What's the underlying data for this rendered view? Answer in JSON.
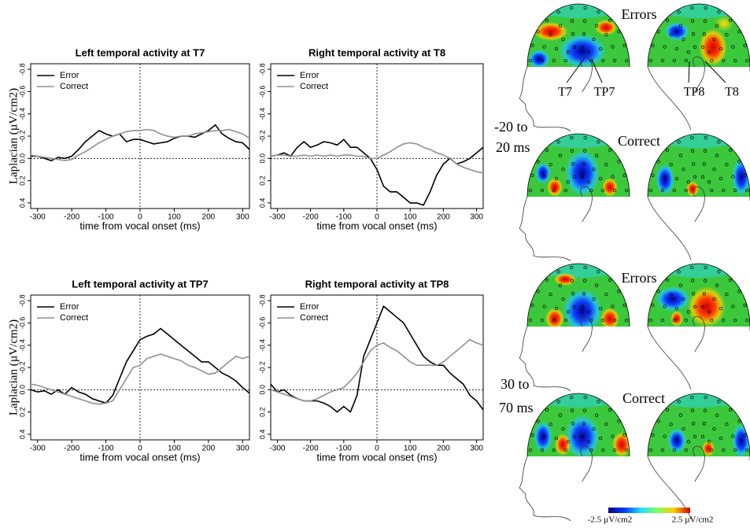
{
  "chart_data": [
    {
      "type": "line",
      "title": "Left temporal activity at T7",
      "xlabel": "time from vocal onset (ms)",
      "ylabel": "Laplacian (µV/cm2)",
      "x": [
        -320,
        -300,
        -280,
        -260,
        -240,
        -220,
        -200,
        -180,
        -160,
        -140,
        -120,
        -100,
        -80,
        -60,
        -40,
        -20,
        0,
        20,
        40,
        60,
        80,
        100,
        120,
        140,
        160,
        180,
        200,
        220,
        240,
        260,
        280,
        300,
        320
      ],
      "series": [
        {
          "name": "Error",
          "color": "#000000",
          "values": [
            -0.02,
            -0.02,
            0.0,
            0.02,
            -0.01,
            0.0,
            -0.02,
            -0.08,
            -0.15,
            -0.2,
            -0.25,
            -0.22,
            -0.2,
            -0.22,
            -0.15,
            -0.17,
            -0.17,
            -0.15,
            -0.13,
            -0.14,
            -0.15,
            -0.18,
            -0.2,
            -0.2,
            -0.19,
            -0.22,
            -0.25,
            -0.3,
            -0.22,
            -0.18,
            -0.15,
            -0.14,
            -0.08
          ]
        },
        {
          "name": "Correct",
          "color": "#909090",
          "values": [
            -0.03,
            -0.02,
            -0.01,
            0.0,
            0.01,
            0.02,
            0.01,
            -0.03,
            -0.06,
            -0.1,
            -0.14,
            -0.17,
            -0.2,
            -0.22,
            -0.24,
            -0.25,
            -0.25,
            -0.26,
            -0.25,
            -0.22,
            -0.2,
            -0.19,
            -0.2,
            -0.2,
            -0.22,
            -0.23,
            -0.24,
            -0.25,
            -0.25,
            -0.26,
            -0.24,
            -0.22,
            -0.18
          ]
        }
      ],
      "xlim": [
        -320,
        320
      ],
      "xticks": [
        -300,
        -200,
        -100,
        0,
        100,
        200,
        300
      ],
      "ylim": [
        -0.85,
        0.45
      ],
      "y_reversed": true,
      "yticks": [
        -0.8,
        -0.6,
        -0.4,
        -0.2,
        {
          "value": 0,
          "label": "0.0"
        },
        0.2,
        0.4
      ],
      "legend": "top-left"
    },
    {
      "type": "line",
      "title": "Right temporal activity at T8",
      "xlabel": "time from vocal onset (ms)",
      "x": [
        -320,
        -300,
        -280,
        -260,
        -240,
        -220,
        -200,
        -180,
        -160,
        -140,
        -120,
        -100,
        -80,
        -60,
        -40,
        -20,
        0,
        20,
        40,
        60,
        80,
        100,
        120,
        140,
        160,
        180,
        200,
        220,
        240,
        260,
        280,
        300,
        320
      ],
      "series": [
        {
          "name": "Error",
          "color": "#000000",
          "values": [
            -0.02,
            -0.03,
            -0.05,
            -0.02,
            -0.1,
            -0.15,
            -0.1,
            -0.12,
            -0.15,
            -0.14,
            -0.12,
            -0.17,
            -0.1,
            -0.1,
            -0.05,
            0.0,
            0.1,
            0.25,
            0.3,
            0.3,
            0.35,
            0.4,
            0.4,
            0.42,
            0.3,
            0.15,
            0.05,
            0.0,
            0.05,
            0.03,
            0.0,
            -0.05,
            -0.1
          ]
        },
        {
          "name": "Correct",
          "color": "#909090",
          "values": [
            -0.02,
            -0.03,
            -0.03,
            -0.02,
            -0.02,
            -0.03,
            -0.02,
            -0.03,
            -0.02,
            -0.03,
            -0.02,
            -0.03,
            -0.03,
            -0.02,
            -0.02,
            0.0,
            0.0,
            -0.03,
            -0.06,
            -0.1,
            -0.13,
            -0.14,
            -0.13,
            -0.1,
            -0.08,
            -0.05,
            -0.03,
            0.0,
            0.05,
            0.08,
            0.1,
            0.12,
            0.13
          ]
        }
      ],
      "xlim": [
        -320,
        320
      ],
      "xticks": [
        -300,
        -200,
        -100,
        0,
        100,
        200,
        300
      ],
      "ylim": [
        -0.85,
        0.45
      ],
      "y_reversed": true,
      "yticks": [
        -0.8,
        -0.6,
        -0.4,
        -0.2,
        {
          "value": 0,
          "label": "0.0"
        },
        0.2,
        0.4
      ],
      "legend": "top-left"
    },
    {
      "type": "line",
      "title": "Left temporal activity at TP7",
      "xlabel": "time from vocal onset (ms)",
      "ylabel": "Laplacian (µV/cm2)",
      "x": [
        -320,
        -300,
        -280,
        -260,
        -240,
        -220,
        -200,
        -180,
        -160,
        -140,
        -120,
        -100,
        -80,
        -60,
        -40,
        -20,
        0,
        20,
        40,
        60,
        80,
        100,
        120,
        140,
        160,
        180,
        200,
        220,
        240,
        260,
        280,
        300,
        320
      ],
      "series": [
        {
          "name": "Error",
          "color": "#000000",
          "values": [
            0.0,
            0.02,
            0.01,
            0.04,
            0.0,
            0.04,
            -0.02,
            0.02,
            0.04,
            0.08,
            0.1,
            0.12,
            0.05,
            -0.1,
            -0.25,
            -0.35,
            -0.45,
            -0.48,
            -0.5,
            -0.55,
            -0.5,
            -0.45,
            -0.4,
            -0.35,
            -0.3,
            -0.25,
            -0.25,
            -0.2,
            -0.15,
            -0.12,
            -0.08,
            -0.02,
            0.03
          ]
        },
        {
          "name": "Correct",
          "color": "#909090",
          "values": [
            -0.05,
            -0.04,
            -0.02,
            0.0,
            0.02,
            0.04,
            0.06,
            0.08,
            0.1,
            0.12,
            0.13,
            0.12,
            0.1,
            0.0,
            -0.1,
            -0.2,
            -0.22,
            -0.28,
            -0.3,
            -0.32,
            -0.3,
            -0.28,
            -0.26,
            -0.22,
            -0.2,
            -0.17,
            -0.14,
            -0.15,
            -0.2,
            -0.25,
            -0.3,
            -0.28,
            -0.3
          ]
        }
      ],
      "xlim": [
        -320,
        320
      ],
      "xticks": [
        -300,
        -200,
        -100,
        0,
        100,
        200,
        300
      ],
      "ylim": [
        -0.85,
        0.45
      ],
      "y_reversed": true,
      "yticks": [
        -0.8,
        -0.6,
        -0.4,
        -0.2,
        {
          "value": 0,
          "label": "0.0"
        },
        0.2,
        0.4
      ],
      "legend": "top-left"
    },
    {
      "type": "line",
      "title": "Right temporal activity at TP8",
      "xlabel": "time from vocal onset (ms)",
      "x": [
        -320,
        -300,
        -280,
        -260,
        -240,
        -220,
        -200,
        -180,
        -160,
        -140,
        -120,
        -100,
        -80,
        -60,
        -40,
        -20,
        0,
        20,
        40,
        60,
        80,
        100,
        120,
        140,
        160,
        180,
        200,
        220,
        240,
        260,
        280,
        300,
        320
      ],
      "series": [
        {
          "name": "Error",
          "color": "#000000",
          "values": [
            -0.05,
            0.02,
            0.0,
            0.05,
            0.08,
            0.1,
            0.1,
            0.1,
            0.12,
            0.15,
            0.2,
            0.15,
            0.2,
            0.05,
            -0.3,
            -0.45,
            -0.6,
            -0.75,
            -0.7,
            -0.65,
            -0.6,
            -0.5,
            -0.4,
            -0.3,
            -0.25,
            -0.22,
            -0.22,
            -0.15,
            -0.1,
            -0.05,
            0.05,
            0.1,
            0.18
          ]
        },
        {
          "name": "Correct",
          "color": "#909090",
          "values": [
            0.0,
            0.02,
            0.04,
            0.06,
            0.08,
            0.1,
            0.1,
            0.08,
            0.05,
            0.02,
            0.0,
            -0.02,
            -0.08,
            -0.15,
            -0.25,
            -0.35,
            -0.4,
            -0.42,
            -0.38,
            -0.35,
            -0.3,
            -0.25,
            -0.22,
            -0.22,
            -0.22,
            -0.22,
            -0.25,
            -0.3,
            -0.35,
            -0.4,
            -0.45,
            -0.42,
            -0.4
          ]
        }
      ],
      "xlim": [
        -320,
        320
      ],
      "xticks": [
        -300,
        -200,
        -100,
        0,
        100,
        200,
        300
      ],
      "ylim": [
        -0.85,
        0.45
      ],
      "y_reversed": true,
      "yticks": [
        -0.8,
        -0.6,
        -0.4,
        -0.2,
        {
          "value": 0,
          "label": "0.0"
        },
        0.2,
        0.4
      ],
      "legend": "top-left"
    }
  ],
  "topomaps": {
    "condition_labels": [
      "Errors",
      "Correct",
      "Errors",
      "Correct"
    ],
    "time_windows": [
      [
        "-20 to",
        "20 ms"
      ],
      [
        "30 to",
        "70 ms"
      ]
    ],
    "electrodes": [
      "T7",
      "TP7",
      "TP8",
      "T8"
    ],
    "colorbar": {
      "min_label": "-2.5 µV/cm2",
      "max_label": "2.5 µV/cm2"
    }
  }
}
